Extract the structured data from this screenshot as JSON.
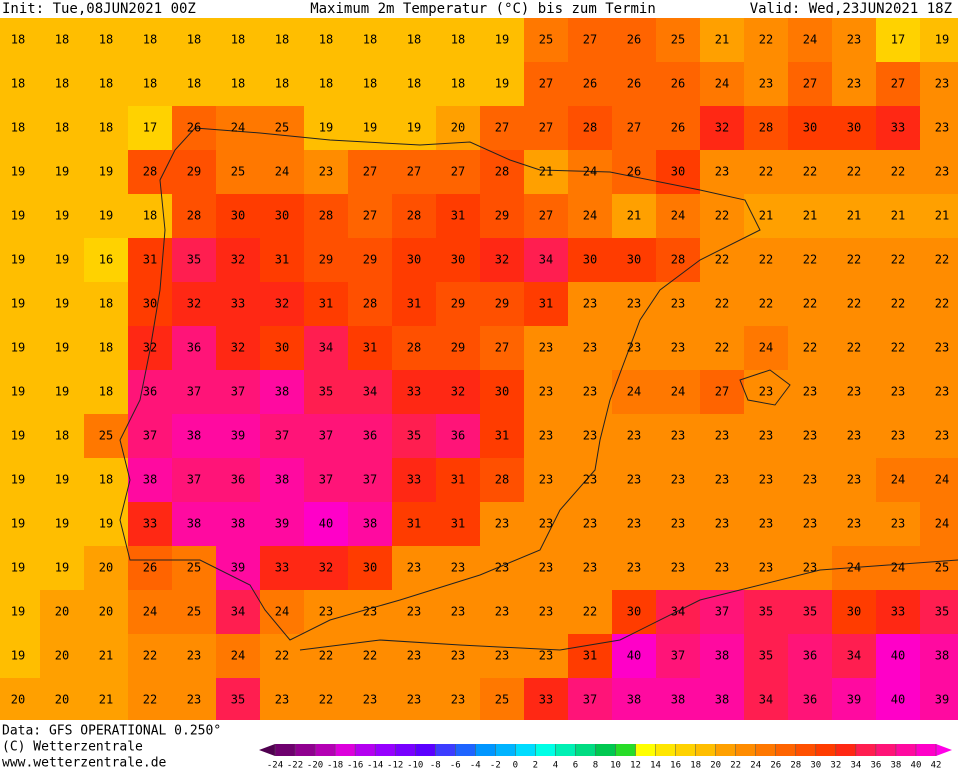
{
  "header": {
    "init": "Init: Tue,08JUN2021 00Z",
    "title": "Maximum 2m Temperatur (°C) bis zum Termin",
    "valid": "Valid: Wed,23JUN2021 18Z"
  },
  "footer": {
    "data": "Data: GFS OPERATIONAL 0.250°",
    "copyright": "(C) Wetterzentrale",
    "url": "www.wetterzentrale.de"
  },
  "grid": [
    [
      18,
      18,
      18,
      18,
      18,
      18,
      18,
      18,
      18,
      18,
      18,
      19,
      25,
      27,
      26,
      25,
      21,
      22,
      24,
      23,
      17,
      19
    ],
    [
      18,
      18,
      18,
      18,
      18,
      18,
      18,
      18,
      18,
      18,
      18,
      19,
      27,
      26,
      26,
      26,
      24,
      23,
      27,
      23,
      27,
      23
    ],
    [
      18,
      18,
      18,
      17,
      26,
      24,
      25,
      19,
      19,
      19,
      20,
      27,
      27,
      28,
      27,
      26,
      32,
      28,
      30,
      30,
      33,
      23
    ],
    [
      19,
      19,
      19,
      28,
      29,
      25,
      24,
      23,
      27,
      27,
      27,
      28,
      21,
      24,
      26,
      30,
      23,
      22,
      22,
      22,
      22,
      23
    ],
    [
      19,
      19,
      19,
      18,
      28,
      30,
      30,
      28,
      27,
      28,
      31,
      29,
      27,
      24,
      21,
      24,
      22,
      21,
      21,
      21,
      21,
      21
    ],
    [
      19,
      19,
      16,
      31,
      35,
      32,
      31,
      29,
      29,
      30,
      30,
      32,
      34,
      30,
      30,
      28,
      22,
      22,
      22,
      22,
      22,
      22
    ],
    [
      19,
      19,
      18,
      30,
      32,
      33,
      32,
      31,
      28,
      31,
      29,
      29,
      31,
      23,
      23,
      23,
      22,
      22,
      22,
      22,
      22,
      22
    ],
    [
      19,
      19,
      18,
      32,
      36,
      32,
      30,
      34,
      31,
      28,
      29,
      27,
      23,
      23,
      23,
      23,
      22,
      24,
      22,
      22,
      22,
      23
    ],
    [
      19,
      19,
      18,
      36,
      37,
      37,
      38,
      35,
      34,
      33,
      32,
      30,
      23,
      23,
      24,
      24,
      27,
      23,
      23,
      23,
      23,
      23
    ],
    [
      19,
      18,
      25,
      37,
      38,
      39,
      37,
      37,
      36,
      35,
      36,
      31,
      23,
      23,
      23,
      23,
      23,
      23,
      23,
      23,
      23,
      23
    ],
    [
      19,
      19,
      18,
      38,
      37,
      36,
      38,
      37,
      37,
      33,
      31,
      28,
      23,
      23,
      23,
      23,
      23,
      23,
      23,
      23,
      24,
      24
    ],
    [
      19,
      19,
      19,
      33,
      38,
      38,
      39,
      40,
      38,
      31,
      31,
      23,
      23,
      23,
      23,
      23,
      23,
      23,
      23,
      23,
      23,
      24
    ],
    [
      19,
      19,
      20,
      26,
      25,
      39,
      33,
      32,
      30,
      23,
      23,
      23,
      23,
      23,
      23,
      23,
      23,
      23,
      23,
      24,
      24,
      25
    ],
    [
      19,
      20,
      20,
      24,
      25,
      34,
      24,
      23,
      23,
      23,
      23,
      23,
      23,
      22,
      30,
      34,
      37,
      35,
      35,
      30,
      33,
      35
    ],
    [
      19,
      20,
      21,
      22,
      23,
      24,
      22,
      22,
      22,
      23,
      23,
      23,
      23,
      31,
      40,
      37,
      38,
      35,
      36,
      34,
      40,
      38
    ],
    [
      20,
      20,
      21,
      22,
      23,
      35,
      23,
      22,
      23,
      23,
      23,
      25,
      33,
      37,
      38,
      38,
      38,
      34,
      36,
      39,
      40,
      39
    ]
  ],
  "colorbar": {
    "ticks": [
      -24,
      -22,
      -20,
      -18,
      -16,
      -14,
      -12,
      -10,
      -8,
      -6,
      -4,
      -2,
      0,
      2,
      4,
      6,
      8,
      10,
      12,
      14,
      16,
      18,
      20,
      22,
      24,
      26,
      28,
      30,
      32,
      34,
      36,
      38,
      40,
      42
    ],
    "colors": [
      "#500050",
      "#6e006e",
      "#900090",
      "#b400b4",
      "#dc00dc",
      "#b400f0",
      "#9600ff",
      "#7800ff",
      "#5a00ff",
      "#3c3cff",
      "#1e64ff",
      "#0096ff",
      "#00b4ff",
      "#00dcff",
      "#00ffe6",
      "#00f0b4",
      "#00dc82",
      "#00c850",
      "#28dc28",
      "#ffff00",
      "#ffe600",
      "#ffd200",
      "#ffbe00",
      "#ffa000",
      "#ff8c00",
      "#ff7800",
      "#ff6400",
      "#ff5000",
      "#ff3c00",
      "#ff2814",
      "#ff1e50",
      "#ff1478",
      "#ff0aa0",
      "#ff00c8",
      "#ff00e6"
    ]
  }
}
